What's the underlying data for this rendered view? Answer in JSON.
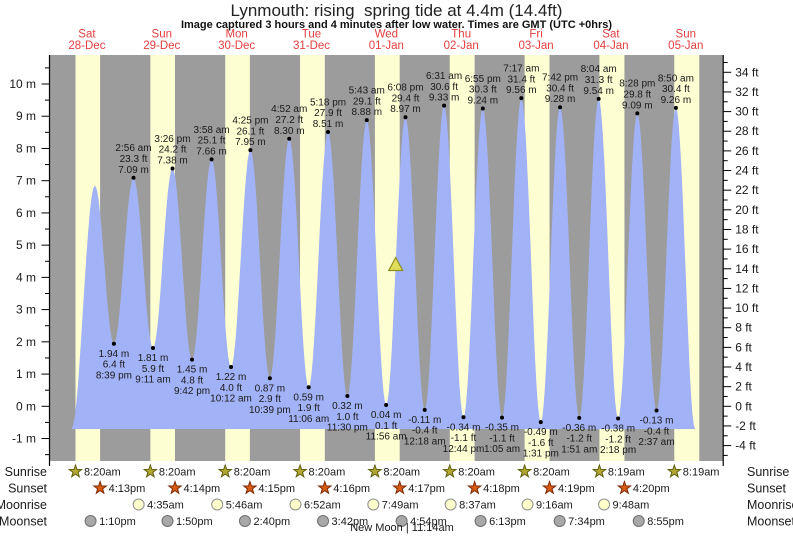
{
  "title": "Lynmouth: rising  spring tide at 4.4m (14.4ft)",
  "subtitle": "Image captured 3 hours and 4 minutes after low water. Times are GMT (UTC +0hrs)",
  "chart_data": {
    "type": "area",
    "x_days": [
      {
        "dow": "Sat",
        "date": "28-Dec"
      },
      {
        "dow": "Sun",
        "date": "29-Dec"
      },
      {
        "dow": "Mon",
        "date": "30-Dec"
      },
      {
        "dow": "Tue",
        "date": "31-Dec"
      },
      {
        "dow": "Wed",
        "date": "01-Jan"
      },
      {
        "dow": "Thu",
        "date": "02-Jan"
      },
      {
        "dow": "Fri",
        "date": "03-Jan"
      },
      {
        "dow": "Sat",
        "date": "04-Jan"
      },
      {
        "dow": "Sun",
        "date": "05-Jan"
      }
    ],
    "y_left": {
      "unit": "m",
      "min": -1,
      "max": 10,
      "step": 1
    },
    "y_right": {
      "unit": "ft",
      "min": -4,
      "max": 34,
      "step": 2
    },
    "high_tides": [
      {
        "day": 1,
        "time": "2:56 am",
        "ft": "23.3 ft",
        "m": "7.09 m"
      },
      {
        "day": 1,
        "time": "3:26 pm",
        "ft": "24.2 ft",
        "m": "7.38 m"
      },
      {
        "day": 2,
        "time": "3:58 am",
        "ft": "25.1 ft",
        "m": "7.66 m"
      },
      {
        "day": 2,
        "time": "4:25 pm",
        "ft": "26.1 ft",
        "m": "7.95 m"
      },
      {
        "day": 3,
        "time": "4:52 am",
        "ft": "27.2 ft",
        "m": "8.30 m"
      },
      {
        "day": 3,
        "time": "5:18 pm",
        "ft": "27.9 ft",
        "m": "8.51 m"
      },
      {
        "day": 4,
        "time": "5:43 am",
        "ft": "29.1 ft",
        "m": "8.88 m"
      },
      {
        "day": 4,
        "time": "6:08 pm",
        "ft": "29.4 ft",
        "m": "8.97 m"
      },
      {
        "day": 5,
        "time": "6:31 am",
        "ft": "30.6 ft",
        "m": "9.33 m"
      },
      {
        "day": 5,
        "time": "6:55 pm",
        "ft": "30.3 ft",
        "m": "9.24 m"
      },
      {
        "day": 6,
        "time": "7:17 am",
        "ft": "31.4 ft",
        "m": "9.56 m"
      },
      {
        "day": 6,
        "time": "7:42 pm",
        "ft": "30.4 ft",
        "m": "9.28 m"
      },
      {
        "day": 7,
        "time": "8:04 am",
        "ft": "31.3 ft",
        "m": "9.54 m"
      },
      {
        "day": 7,
        "time": "8:28 pm",
        "ft": "29.8 ft",
        "m": "9.09 m"
      },
      {
        "day": 8,
        "time": "8:50 am",
        "ft": "30.4 ft",
        "m": "9.26 m"
      }
    ],
    "low_tides": [
      {
        "day": 0,
        "time": "8:39 pm",
        "ft": "6.4 ft",
        "m": "1.94 m"
      },
      {
        "day": 1,
        "time": "9:11 am",
        "ft": "5.9 ft",
        "m": "1.81 m"
      },
      {
        "day": 1,
        "time": "9:42 pm",
        "ft": "4.8 ft",
        "m": "1.45 m"
      },
      {
        "day": 2,
        "time": "10:12 am",
        "ft": "4.0 ft",
        "m": "1.22 m"
      },
      {
        "day": 2,
        "time": "10:39 pm",
        "ft": "2.9 ft",
        "m": "0.87 m"
      },
      {
        "day": 3,
        "time": "11:06 am",
        "ft": "1.9 ft",
        "m": "0.59 m"
      },
      {
        "day": 3,
        "time": "11:30 pm",
        "ft": "1.0 ft",
        "m": "0.32 m"
      },
      {
        "day": 4,
        "time": "11:56 am",
        "ft": "0.1 ft",
        "m": "0.04 m"
      },
      {
        "day": 5,
        "time": "12:18 am",
        "ft": "-0.4 ft",
        "m": "-0.11 m"
      },
      {
        "day": 5,
        "time": "12:44 pm",
        "ft": "-1.1 ft",
        "m": "-0.34 m"
      },
      {
        "day": 6,
        "time": "1:05 am",
        "ft": "-1.1 ft",
        "m": "-0.35 m"
      },
      {
        "day": 6,
        "time": "1:31 pm",
        "ft": "-1.6 ft",
        "m": "-0.49 m"
      },
      {
        "day": 7,
        "time": "1:51 am",
        "ft": "-1.2 ft",
        "m": "-0.36 m"
      },
      {
        "day": 7,
        "time": "2:18 pm",
        "ft": "-1.2 ft",
        "m": "-0.38 m"
      },
      {
        "day": 8,
        "time": "2:37 am",
        "ft": "-0.4 ft",
        "m": "-0.13 m"
      }
    ],
    "lead_in_peak_m": 6.85,
    "current_marker": {
      "height_m": 4.4,
      "t_hours": 111
    }
  },
  "astro": {
    "labels": {
      "sunrise": "Sunrise",
      "sunset": "Sunset",
      "moonrise": "Moonrise",
      "moonset": "Moonset"
    },
    "sunrise": [
      {
        "day": 0,
        "time": "8:20am"
      },
      {
        "day": 1,
        "time": "8:20am"
      },
      {
        "day": 2,
        "time": "8:20am"
      },
      {
        "day": 3,
        "time": "8:20am"
      },
      {
        "day": 4,
        "time": "8:20am"
      },
      {
        "day": 5,
        "time": "8:20am"
      },
      {
        "day": 6,
        "time": "8:20am"
      },
      {
        "day": 7,
        "time": "8:19am"
      },
      {
        "day": 8,
        "time": "8:19am"
      }
    ],
    "sunset": [
      {
        "day": 0,
        "time": "4:13pm"
      },
      {
        "day": 1,
        "time": "4:14pm"
      },
      {
        "day": 2,
        "time": "4:15pm"
      },
      {
        "day": 3,
        "time": "4:16pm"
      },
      {
        "day": 4,
        "time": "4:17pm"
      },
      {
        "day": 5,
        "time": "4:18pm"
      },
      {
        "day": 6,
        "time": "4:19pm"
      },
      {
        "day": 7,
        "time": "4:20pm"
      }
    ],
    "moonrise": [
      {
        "day": 1,
        "time": "4:35am"
      },
      {
        "day": 2,
        "time": "5:46am"
      },
      {
        "day": 3,
        "time": "6:52am"
      },
      {
        "day": 4,
        "time": "7:49am"
      },
      {
        "day": 5,
        "time": "8:37am"
      },
      {
        "day": 6,
        "time": "9:16am"
      },
      {
        "day": 7,
        "time": "9:48am"
      }
    ],
    "moonset": [
      {
        "day": 0,
        "time": "1:10pm"
      },
      {
        "day": 1,
        "time": "1:50pm"
      },
      {
        "day": 2,
        "time": "2:40pm"
      },
      {
        "day": 3,
        "time": "3:42pm"
      },
      {
        "day": 4,
        "time": "4:54pm"
      },
      {
        "day": 5,
        "time": "6:13pm"
      },
      {
        "day": 6,
        "time": "7:34pm"
      },
      {
        "day": 7,
        "time": "8:55pm"
      }
    ],
    "new_moon": "New Moon | 11:14am"
  },
  "colors": {
    "night_band": "#9c9c9c",
    "day_band": "#fdffd2",
    "tide_fill": "#a2b2f6",
    "day_label_red": "#e43f3f",
    "axis": "#000000",
    "text": "#1a1a1a",
    "sunrise_star": "#b2a832",
    "sunrise_star_stroke": "#5f5f10",
    "sunset_star": "#d85c14",
    "sunset_star_stroke": "#7c2a06",
    "moonrise_circle": "#ffffcc",
    "moonrise_circle_stroke": "#8f8f8f",
    "moonset_circle": "#a8a8a8",
    "moonset_circle_stroke": "#6f6f6f",
    "marker_yellow": "#dede5a",
    "marker_stroke": "#8e8e20"
  }
}
